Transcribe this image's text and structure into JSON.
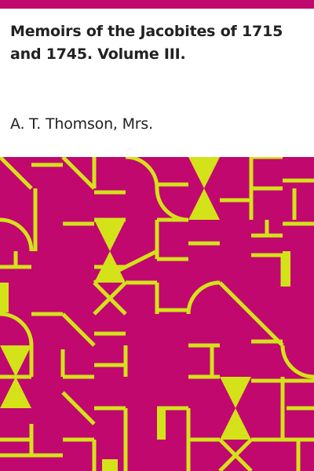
{
  "book": {
    "title": "Memoirs of the Jacobites of 1715 and 1745. Volume III.",
    "author": "A. T. Thomson, Mrs."
  },
  "colors": {
    "accent": "#c0086e",
    "pattern_background": "#c0086e",
    "pattern_foreground": "#d4e21a",
    "text": "#222222",
    "page_background": "#ffffff"
  },
  "decor": {
    "pattern_icon": "geometric-tile-pattern"
  }
}
